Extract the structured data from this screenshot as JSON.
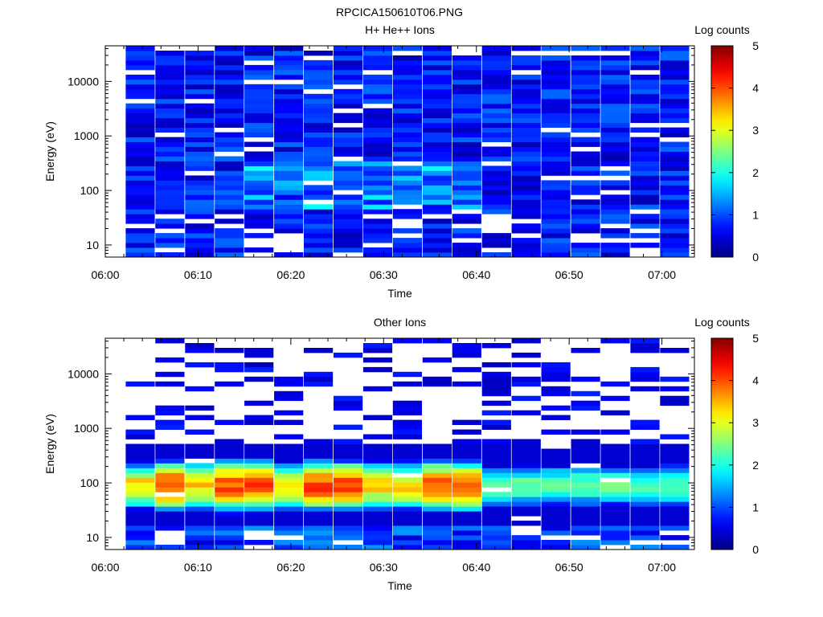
{
  "figure_title": "RPCICA150610T06.PNG",
  "chart_data": [
    {
      "type": "heatmap",
      "title": "H+ He++ Ions",
      "xlabel": "Time",
      "ylabel": "Energy (eV)",
      "x_ticks": [
        "06:00",
        "06:10",
        "06:20",
        "06:30",
        "06:40",
        "06:50",
        "07:00"
      ],
      "y_scale": "log",
      "y_ticks": [
        "10",
        "100",
        "1000",
        "10000"
      ],
      "ylim": [
        6,
        45000
      ],
      "colorbar": {
        "label": "Log counts",
        "ticks": [
          "0",
          "1",
          "2",
          "3",
          "4",
          "5"
        ],
        "range": [
          0,
          5
        ]
      },
      "summary": "Blue (log counts ~0.3-1.5) across all energies 10 eV - 40 keV; slightly elevated (~1.5-2) near 60-300 eV around 06:16-06:36; white gaps where no counts."
    },
    {
      "type": "heatmap",
      "title": "Other Ions",
      "xlabel": "Time",
      "ylabel": "Energy (eV)",
      "x_ticks": [
        "06:00",
        "06:10",
        "06:20",
        "06:30",
        "06:40",
        "06:50",
        "07:00"
      ],
      "y_scale": "log",
      "y_ticks": [
        "10",
        "100",
        "1000",
        "10000"
      ],
      "ylim": [
        6,
        45000
      ],
      "colorbar": {
        "label": "Log counts",
        "ticks": [
          "0",
          "1",
          "2",
          "3",
          "4",
          "5"
        ],
        "range": [
          0,
          5
        ]
      },
      "summary": "Peak log counts ~3.5-4 at 60-200 eV near 06:05, 06:16, 06:23 and 06:32-06:36; counts fall to ~2 after 06:38; sparse lines above 1 keV."
    }
  ]
}
